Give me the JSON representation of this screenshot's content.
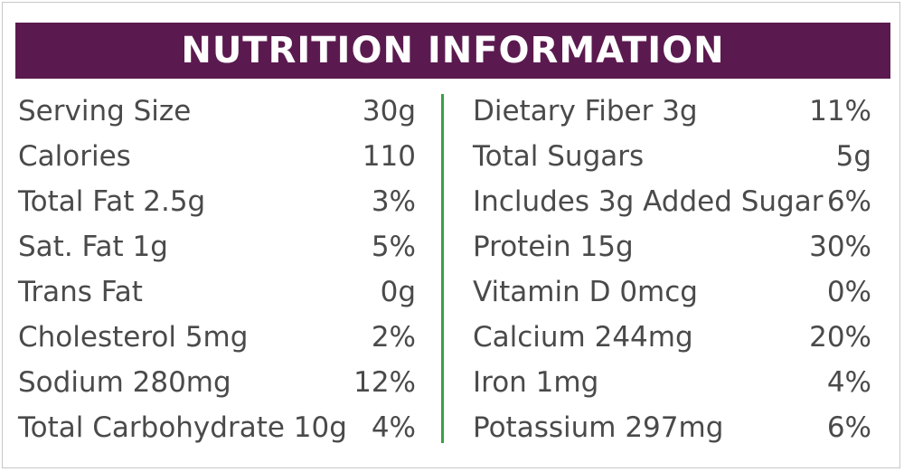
{
  "title": "NUTRITION INFORMATION",
  "colors": {
    "header_bg": "#5b1a4f",
    "divider": "#3aa042",
    "text": "#4a4a4a"
  },
  "left_rows": [
    {
      "label": "Serving Size",
      "value": "30g"
    },
    {
      "label": "Calories",
      "value": "110"
    },
    {
      "label": "Total Fat 2.5g",
      "value": "3%"
    },
    {
      "label": "Sat. Fat 1g",
      "value": "5%"
    },
    {
      "label": "Trans Fat",
      "value": "0g"
    },
    {
      "label": "Cholesterol 5mg",
      "value": "2%"
    },
    {
      "label": "Sodium 280mg",
      "value": "12%"
    },
    {
      "label": "Total Carbohydrate 10g",
      "value": "4%"
    }
  ],
  "right_rows": [
    {
      "label": "Dietary Fiber 3g",
      "value": "11%"
    },
    {
      "label": "Total Sugars",
      "value": "5g"
    },
    {
      "label": "Includes 3g Added Sugar",
      "value": "6%"
    },
    {
      "label": "Protein 15g",
      "value": "30%"
    },
    {
      "label": "Vitamin D 0mcg",
      "value": "0%"
    },
    {
      "label": "Calcium 244mg",
      "value": "20%"
    },
    {
      "label": "Iron 1mg",
      "value": "4%"
    },
    {
      "label": "Potassium 297mg",
      "value": "6%"
    }
  ]
}
